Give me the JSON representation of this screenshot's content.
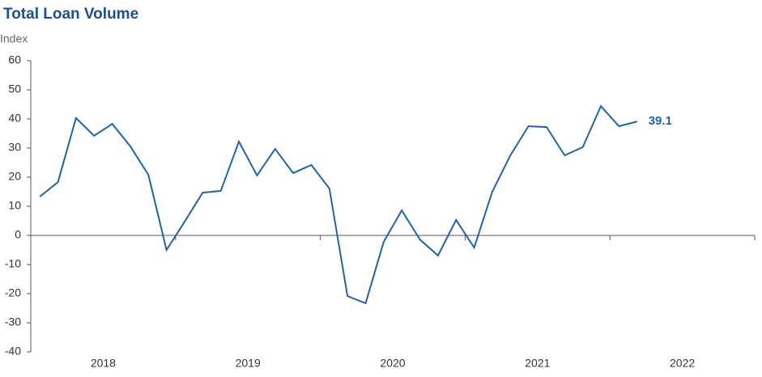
{
  "chart_data": {
    "type": "line",
    "title": "Total Loan Volume",
    "y_label": "Index",
    "categories": [
      null,
      null,
      null,
      null,
      null,
      null,
      null,
      null,
      null,
      null,
      null,
      null,
      null,
      null,
      null,
      null,
      null,
      null,
      null,
      null,
      null,
      null,
      null,
      null,
      null,
      null,
      null,
      null,
      null,
      null,
      null,
      null,
      null,
      null,
      null,
      null,
      null,
      null,
      null,
      null
    ],
    "year_labels": [
      "2018",
      "2019",
      "2020",
      "2021",
      "2022"
    ],
    "series": [
      {
        "name": "Total Loan Volume",
        "color": "#1f64a8",
        "values": [
          13.3,
          18.3,
          40.3,
          34.2,
          38.3,
          30.6,
          20.8,
          -5,
          4.7,
          14.7,
          15.3,
          32.2,
          20.6,
          29.7,
          21.4,
          24.2,
          16.1,
          -20.8,
          -23.3,
          -2.2,
          8.6,
          -1.4,
          -6.9,
          5.3,
          -4.2,
          15,
          27.5,
          37.5,
          37.2,
          27.5,
          30.3,
          44.4,
          37.5,
          39.1,
          null,
          null,
          null,
          null,
          null,
          null
        ]
      }
    ],
    "label_last": true,
    "ylim": [
      -40,
      60
    ],
    "yticks": [
      -40,
      -30,
      -20,
      -10,
      0,
      10,
      20,
      30,
      40,
      50,
      60
    ],
    "grid": false
  }
}
